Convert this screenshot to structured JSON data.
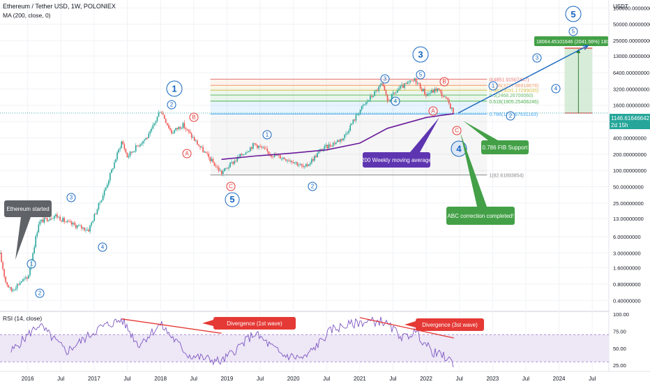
{
  "header": {
    "symbol_line": "Ethereum / Tether USD, 1W, POLONIEX",
    "ma_line": "MA (200, close, 0)",
    "rsi_line": "RSI (14, close)"
  },
  "price_axis": {
    "currency": "USDT",
    "ticks": [
      "100000.00000000",
      "50000.00000000",
      "25000.00000000",
      "13000.00000000",
      "6400.00000000",
      "3200.00000000",
      "1600.00000000",
      "800.00000000",
      "400.00000000",
      "200.00000000",
      "100.00000000",
      "50.00000000",
      "25.00000000",
      "13.00000000",
      "6.00000000",
      "3.00000000",
      "1.60000000",
      "0.80000000",
      "0.40000000"
    ],
    "last_price": "1146.61646642",
    "countdown": "2d 15h"
  },
  "rsi_axis": {
    "ticks": [
      "100.00",
      "75.00",
      "50.00",
      "25.00"
    ]
  },
  "time_axis": {
    "ticks": [
      "2016",
      "Jul",
      "2017",
      "Jul",
      "2018",
      "Jul",
      "2019",
      "Jul",
      "2020",
      "Jul",
      "2021",
      "Jul",
      "2022",
      "Jul",
      "2023",
      "Jul",
      "2024",
      "Jul"
    ]
  },
  "fib_levels": [
    {
      "label": "0(4851.91507447)",
      "color": "#e57373"
    },
    {
      "label": "0.236(3727.86918678)",
      "color": "#ef9a6a"
    },
    {
      "label": "0.382(3031.17299035)",
      "color": "#d4c24a"
    },
    {
      "label": "0.5(2468.26700060)",
      "color": "#66bb6a"
    },
    {
      "label": "0.618(1905.25406246)",
      "color": "#4caf50"
    },
    {
      "label": "0.786(1103.67631163)",
      "color": "#42a5f5"
    },
    {
      "label": "1(82.61893854)",
      "color": "#888888"
    }
  ],
  "wave_labels": [
    "1",
    "2",
    "3",
    "4",
    "5",
    "A",
    "B",
    "C",
    "1",
    "2",
    "3",
    "4",
    "5",
    "A",
    "B",
    "C",
    "1",
    "2",
    "3",
    "4",
    "5",
    "1",
    "2",
    "3",
    "4",
    "5"
  ],
  "projection_box": {
    "label": "18064.45101646 (2041.56%) 1806445"
  },
  "callouts": {
    "started": "Ethereum started",
    "ma200": "200 Weekly moving average",
    "fib_support": "0.786 FIB Support",
    "abc_done": "ABC correction completed!",
    "div1": "Divergence (1st wave)",
    "div3": "Divergence (3st wave)"
  },
  "colors": {
    "up": "#26a69a",
    "down": "#ef5350",
    "ma": "#6a1b9a",
    "rsi": "#7e57c2",
    "wave_blue": "#1565c0",
    "wave_red": "#e53935",
    "callout_green": "#43a047",
    "callout_purple": "#5e35b1",
    "callout_red": "#e53935",
    "callout_grey": "#5f6368"
  },
  "chart_data": {
    "type": "candlestick",
    "title": "Ethereum / Tether USD, 1W, POLONIEX",
    "y_scale": "log",
    "ylim": [
      0.3,
      140000
    ],
    "x_range": [
      "2015-08",
      "2024-10"
    ],
    "price_path": [
      {
        "date": "2015-08",
        "price": 2.8
      },
      {
        "date": "2015-09",
        "price": 0.9
      },
      {
        "date": "2015-10",
        "price": 0.6
      },
      {
        "date": "2015-12",
        "price": 0.95
      },
      {
        "date": "2016-01",
        "price": 1.0
      },
      {
        "date": "2016-03",
        "price": 11
      },
      {
        "date": "2016-06",
        "price": 15
      },
      {
        "date": "2016-08",
        "price": 11
      },
      {
        "date": "2016-12",
        "price": 8
      },
      {
        "date": "2017-03",
        "price": 45
      },
      {
        "date": "2017-06",
        "price": 350
      },
      {
        "date": "2017-07",
        "price": 180
      },
      {
        "date": "2017-09",
        "price": 300
      },
      {
        "date": "2017-11",
        "price": 450
      },
      {
        "date": "2018-01",
        "price": 1350
      },
      {
        "date": "2018-02",
        "price": 800
      },
      {
        "date": "2018-03",
        "price": 500
      },
      {
        "date": "2018-05",
        "price": 700
      },
      {
        "date": "2018-08",
        "price": 280
      },
      {
        "date": "2018-12",
        "price": 90
      },
      {
        "date": "2019-02",
        "price": 140
      },
      {
        "date": "2019-06",
        "price": 310
      },
      {
        "date": "2019-09",
        "price": 200
      },
      {
        "date": "2020-01",
        "price": 150
      },
      {
        "date": "2020-03",
        "price": 110
      },
      {
        "date": "2020-06",
        "price": 240
      },
      {
        "date": "2020-10",
        "price": 400
      },
      {
        "date": "2021-01",
        "price": 1300
      },
      {
        "date": "2021-05",
        "price": 3900
      },
      {
        "date": "2021-06",
        "price": 1900
      },
      {
        "date": "2021-08",
        "price": 3200
      },
      {
        "date": "2021-11",
        "price": 4700
      },
      {
        "date": "2022-01",
        "price": 2500
      },
      {
        "date": "2022-03",
        "price": 3200
      },
      {
        "date": "2022-05",
        "price": 1800
      },
      {
        "date": "2022-06",
        "price": 1146.62
      }
    ],
    "ma200_path": [
      {
        "date": "2018-12",
        "price": 160
      },
      {
        "date": "2019-06",
        "price": 185
      },
      {
        "date": "2020-01",
        "price": 210
      },
      {
        "date": "2020-07",
        "price": 240
      },
      {
        "date": "2021-01",
        "price": 320
      },
      {
        "date": "2021-06",
        "price": 600
      },
      {
        "date": "2022-01",
        "price": 950
      },
      {
        "date": "2022-06",
        "price": 1120
      }
    ],
    "projection": {
      "from_date": "2022-06",
      "from_price": 1146.62,
      "to_date": "2024-05",
      "to_price": 18064.45
    },
    "rsi": {
      "ylim": [
        20,
        100
      ],
      "overbought": 70,
      "oversold": 30,
      "path": [
        {
          "date": "2015-10",
          "value": 45
        },
        {
          "date": "2016-03",
          "value": 85
        },
        {
          "date": "2016-08",
          "value": 45
        },
        {
          "date": "2017-02",
          "value": 80
        },
        {
          "date": "2017-06",
          "value": 92
        },
        {
          "date": "2017-09",
          "value": 55
        },
        {
          "date": "2018-01",
          "value": 85
        },
        {
          "date": "2018-06",
          "value": 40
        },
        {
          "date": "2018-12",
          "value": 30
        },
        {
          "date": "2019-06",
          "value": 72
        },
        {
          "date": "2019-11",
          "value": 40
        },
        {
          "date": "2020-03",
          "value": 35
        },
        {
          "date": "2020-08",
          "value": 78
        },
        {
          "date": "2021-01",
          "value": 88
        },
        {
          "date": "2021-05",
          "value": 90
        },
        {
          "date": "2021-09",
          "value": 65
        },
        {
          "date": "2021-11",
          "value": 75
        },
        {
          "date": "2022-02",
          "value": 45
        },
        {
          "date": "2022-05",
          "value": 35
        },
        {
          "date": "2022-06",
          "value": 25
        }
      ]
    }
  }
}
